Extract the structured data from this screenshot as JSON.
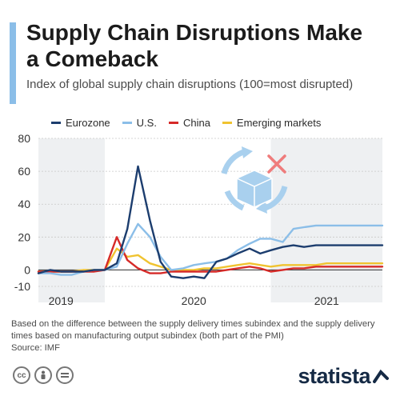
{
  "header": {
    "title": "Supply Chain Disruptions Make a Comeback",
    "subtitle": "Index of global supply chain disruptions (100=most disrupted)"
  },
  "footer": {
    "note": "Based on the difference between the supply delivery times subindex and the supply delivery times based on manufacturing output subindex (both part of the PMI)",
    "source": "Source: IMF",
    "brand": "statista",
    "license_icons": [
      "cc-icon",
      "person-icon",
      "equal-icon"
    ]
  },
  "colors": {
    "accent": "#8bbee8",
    "shaded_period": "#eef0f2",
    "grid": "#c8c8c8",
    "zero_line": "#444444"
  },
  "chart_data": {
    "type": "line",
    "title": "Supply Chain Disruptions Make a Comeback",
    "subtitle": "Index of global supply chain disruptions (100=most disrupted)",
    "xlabel": "",
    "ylabel": "",
    "ylim": [
      -10,
      80
    ],
    "yticks": [
      -10,
      0,
      20,
      40,
      60,
      80
    ],
    "ytick_labels": [
      "-10",
      "0",
      "20",
      "40",
      "60",
      "80"
    ],
    "xlim": [
      2018.83,
      2021.42
    ],
    "year_labels": [
      {
        "label": "2019",
        "x": 2019.0
      },
      {
        "label": "2020",
        "x": 2020.0
      },
      {
        "label": "2021",
        "x": 2021.0
      }
    ],
    "shaded_spans": [
      [
        2018.83,
        2019.33
      ],
      [
        2020.58,
        2021.42
      ]
    ],
    "grid": true,
    "legend_position": "top",
    "x": [
      2018.83,
      2018.92,
      2019.0,
      2019.08,
      2019.17,
      2019.25,
      2019.33,
      2019.42,
      2019.5,
      2019.58,
      2019.67,
      2019.75,
      2019.83,
      2019.92,
      2020.0,
      2020.08,
      2020.17,
      2020.25,
      2020.33,
      2020.42,
      2020.5,
      2020.58,
      2020.67,
      2020.75,
      2020.83,
      2020.92,
      2021.0,
      2021.08,
      2021.17,
      2021.25,
      2021.33,
      2021.42
    ],
    "series": [
      {
        "name": "Eurozone",
        "color": "#1c3d6e",
        "values": [
          -2,
          0,
          -1,
          -1,
          -1,
          0,
          0,
          4,
          25,
          63,
          30,
          5,
          -4,
          -5,
          -4,
          -5,
          5,
          7,
          10,
          13,
          10,
          12,
          14,
          15,
          14,
          15,
          15,
          15,
          15,
          15,
          15,
          15
        ]
      },
      {
        "name": "U.S.",
        "color": "#8bbee8",
        "values": [
          -2,
          -2,
          -3,
          -3,
          -1,
          0,
          0,
          2,
          16,
          28,
          20,
          8,
          0,
          1,
          3,
          4,
          5,
          7,
          12,
          16,
          19,
          19,
          17,
          25,
          26,
          27,
          27,
          27,
          27,
          27,
          27,
          27
        ]
      },
      {
        "name": "China",
        "color": "#d62a28",
        "values": [
          -1,
          -1,
          -1,
          -1,
          -1,
          -1,
          0,
          20,
          6,
          1,
          -2,
          -2,
          -1,
          -1,
          -1,
          -1,
          -1,
          0,
          1,
          2,
          1,
          -1,
          0,
          1,
          1,
          2,
          2,
          2,
          2,
          2,
          2,
          2
        ]
      },
      {
        "name": "Emerging markets",
        "color": "#f0c330",
        "values": [
          -1,
          -1,
          -1,
          -1,
          0,
          0,
          0,
          13,
          8,
          9,
          4,
          2,
          0,
          0,
          0,
          1,
          1,
          2,
          3,
          4,
          3,
          2,
          3,
          3,
          3,
          3,
          4,
          4,
          4,
          4,
          4,
          4
        ]
      }
    ]
  }
}
